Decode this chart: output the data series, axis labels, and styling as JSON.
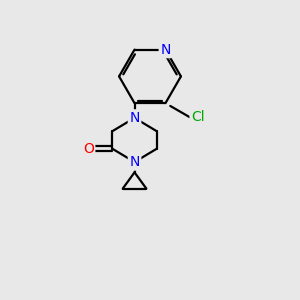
{
  "background_color": "#e8e8e8",
  "bond_color": "#000000",
  "N_color": "#0000ff",
  "O_color": "#ff0000",
  "Cl_color": "#00aa00",
  "bond_width": 1.6,
  "figsize": [
    3.0,
    3.0
  ],
  "dpi": 100,
  "xlim": [
    0,
    10
  ],
  "ylim": [
    0,
    10
  ]
}
